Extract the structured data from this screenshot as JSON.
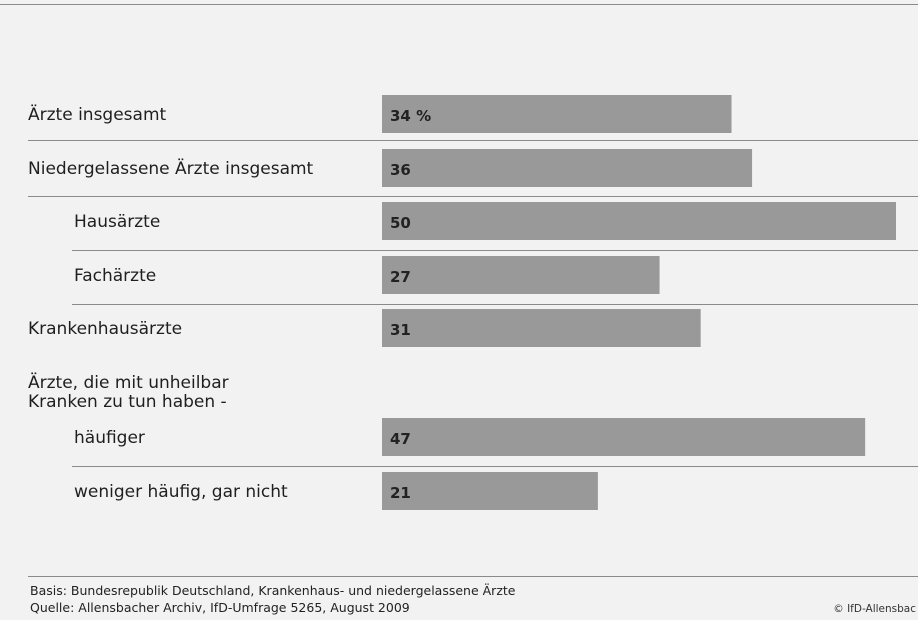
{
  "chart_data": {
    "type": "bar",
    "orientation": "horizontal",
    "unit": "%",
    "xlim": [
      0,
      50
    ],
    "rows": [
      {
        "label": "Ärzte insgesamt",
        "value": 34,
        "value_label": "34 %",
        "indent": false,
        "line_below": true
      },
      {
        "label": "Niedergelassene Ärzte insgesamt",
        "value": 36,
        "value_label": "36",
        "indent": false,
        "line_below": true
      },
      {
        "label": "Hausärzte",
        "value": 50,
        "value_label": "50",
        "indent": true,
        "line_below": true
      },
      {
        "label": "Fachärzte",
        "value": 27,
        "value_label": "27",
        "indent": true,
        "line_below": true
      },
      {
        "label": "Krankenhausärzte",
        "value": 31,
        "value_label": "31",
        "indent": false,
        "line_below": false
      },
      {
        "label": "häufiger",
        "value": 47,
        "value_label": "47",
        "indent": true,
        "line_below": true
      },
      {
        "label": "weniger häufig, gar nicht",
        "value": 21,
        "value_label": "21",
        "indent": true,
        "line_below": false
      }
    ],
    "group_header": [
      "Ärzte, die mit unheilbar",
      "Kranken zu tun haben -"
    ],
    "bar_color": "#999999"
  },
  "footer": {
    "basis": "Basis: Bundesrepublik Deutschland, Krankenhaus- und niedergelassene Ärzte",
    "source": "Quelle: Allensbacher Archiv, IfD-Umfrage 5265, August 2009",
    "copyright": "© IfD-Allensbac"
  }
}
